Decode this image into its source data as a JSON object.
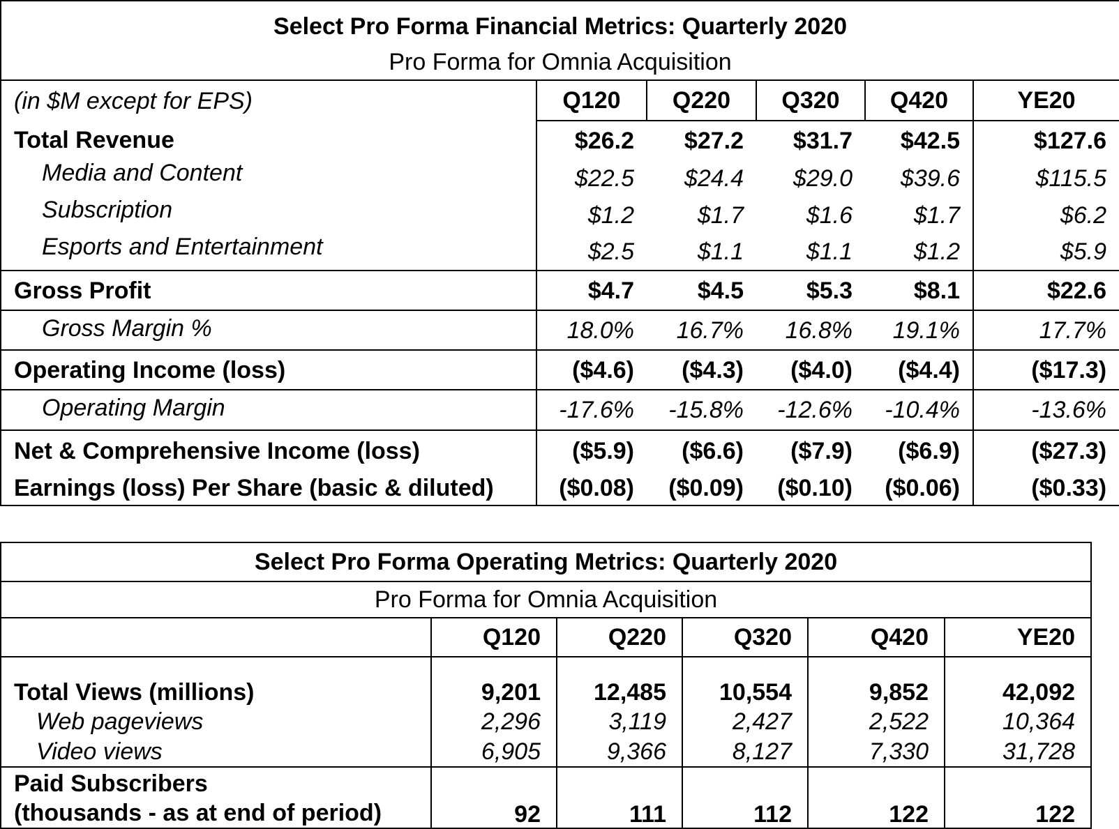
{
  "financial": {
    "title": "Select Pro Forma Financial Metrics: Quarterly 2020",
    "subtitle": "Pro Forma for Omnia Acquisition",
    "unit_note": "(in $M except for EPS)",
    "columns": [
      "Q120",
      "Q220",
      "Q320",
      "Q420",
      "YE20"
    ],
    "rows": [
      {
        "label": "Total Revenue",
        "values": [
          "$26.2",
          "$27.2",
          "$31.7",
          "$42.5",
          "$127.6"
        ]
      },
      {
        "label": "Media and Content",
        "values": [
          "$22.5",
          "$24.4",
          "$29.0",
          "$39.6",
          "$115.5"
        ]
      },
      {
        "label": "Subscription",
        "values": [
          "$1.2",
          "$1.7",
          "$1.6",
          "$1.7",
          "$6.2"
        ]
      },
      {
        "label": "Esports and Entertainment",
        "values": [
          "$2.5",
          "$1.1",
          "$1.1",
          "$1.2",
          "$5.9"
        ]
      },
      {
        "label": "Gross Profit",
        "values": [
          "$4.7",
          "$4.5",
          "$5.3",
          "$8.1",
          "$22.6"
        ]
      },
      {
        "label": "Gross Margin %",
        "values": [
          "18.0%",
          "16.7%",
          "16.8%",
          "19.1%",
          "17.7%"
        ]
      },
      {
        "label": "Operating Income (loss)",
        "values": [
          "($4.6)",
          "($4.3)",
          "($4.0)",
          "($4.4)",
          "($17.3)"
        ]
      },
      {
        "label": "Operating Margin",
        "values": [
          "-17.6%",
          "-15.8%",
          "-12.6%",
          "-10.4%",
          "-13.6%"
        ]
      },
      {
        "label": "Net & Comprehensive Income (loss)",
        "values": [
          "($5.9)",
          "($6.6)",
          "($7.9)",
          "($6.9)",
          "($27.3)"
        ]
      },
      {
        "label": "Earnings (loss) Per Share (basic & diluted)",
        "values": [
          "($0.08)",
          "($0.09)",
          "($0.10)",
          "($0.06)",
          "($0.33)"
        ]
      }
    ]
  },
  "operating": {
    "title": "Select Pro Forma Operating Metrics: Quarterly 2020",
    "subtitle": "Pro Forma for Omnia Acquisition",
    "columns": [
      "Q120",
      "Q220",
      "Q320",
      "Q420",
      "YE20"
    ],
    "rows": [
      {
        "label": "Total Views (millions)",
        "values": [
          "9,201",
          "12,485",
          "10,554",
          "9,852",
          "42,092"
        ]
      },
      {
        "label": "Web pageviews",
        "values": [
          "2,296",
          "3,119",
          "2,427",
          "2,522",
          "10,364"
        ]
      },
      {
        "label": "Video views",
        "values": [
          "6,905",
          "9,366",
          "8,127",
          "7,330",
          "31,728"
        ]
      },
      {
        "label_line1": "Paid Subscribers",
        "label_line2": "(thousands - as at end of period)",
        "values": [
          "92",
          "111",
          "112",
          "122",
          "122"
        ]
      }
    ]
  }
}
